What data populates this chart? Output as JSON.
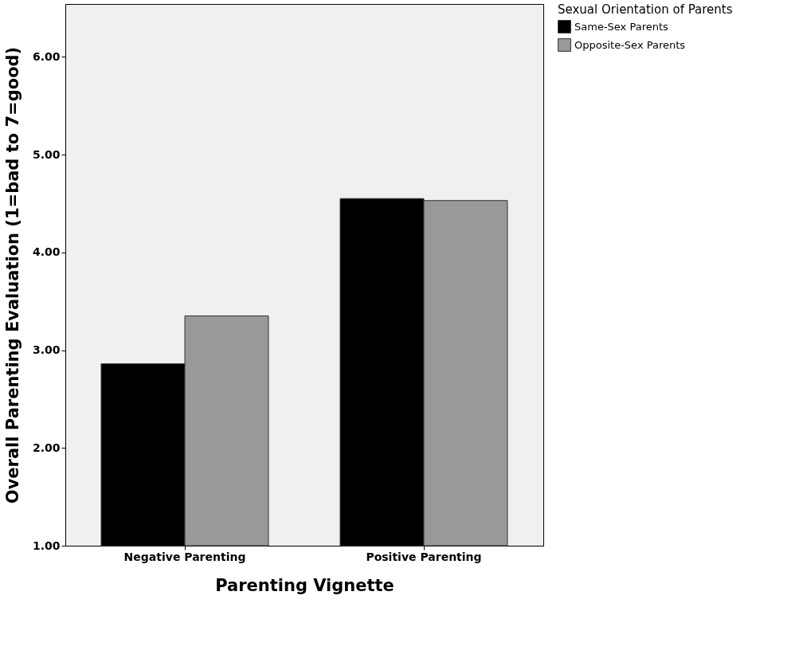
{
  "chart_data": {
    "type": "bar",
    "xlabel": "Parenting Vignette",
    "ylabel": "Overall Parenting Evaluation (1=bad to 7=good)",
    "legend_title": "Sexual Orientation of Parents",
    "legend": "top right",
    "grid": false,
    "categories": [
      "Negative Parenting",
      "Positive Parenting"
    ],
    "series": [
      {
        "name": "Same-Sex Parents",
        "color": "#000000",
        "values": [
          2.86,
          4.55
        ]
      },
      {
        "name": "Opposite-Sex Parents",
        "color": "#999999",
        "values": [
          3.35,
          4.53
        ]
      }
    ],
    "ylim": [
      1,
      6.54
    ],
    "yticks": [
      {
        "value": 1,
        "label": "1.00"
      },
      {
        "value": 2,
        "label": "2.00"
      },
      {
        "value": 3,
        "label": "3.00"
      },
      {
        "value": 4,
        "label": "4.00"
      },
      {
        "value": 5,
        "label": "5.00"
      },
      {
        "value": 6,
        "label": "6.00"
      }
    ]
  }
}
